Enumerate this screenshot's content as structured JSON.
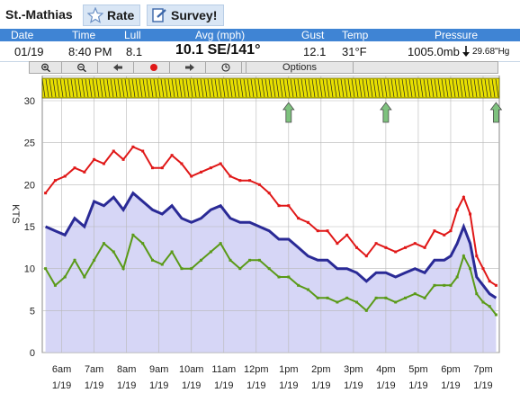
{
  "app": {
    "station": "St.-Mathias",
    "rate_label": "Rate",
    "survey_label": "Survey!"
  },
  "colors": {
    "header_bg": "#3f84d4",
    "gust": "#e01818",
    "avg": "#2a2a96",
    "lull": "#5a9a18",
    "fill": "#d6d6f6"
  },
  "headers": {
    "date": "Date",
    "time": "Time",
    "lull": "Lull",
    "avg": "Avg (mph)",
    "gust": "Gust",
    "temp": "Temp",
    "pressure": "Pressure"
  },
  "current": {
    "date": "01/19",
    "time": "8:40 PM",
    "lull": "8.1",
    "avg": "10.1 SE/141°",
    "gust": "12.1",
    "temp": "31°F",
    "pressure": "1005.0mb",
    "pressure_inhg": "29.68\"Hg"
  },
  "toolbar": {
    "options_label": "Options",
    "icons": [
      "zoom-in-icon",
      "zoom-out-icon",
      "arrow-left-icon",
      "record-icon",
      "arrow-right-icon",
      "clock-icon"
    ]
  },
  "chart_data": {
    "type": "line",
    "ylabel": "KTS",
    "ylim": [
      0,
      33
    ],
    "yticks": [
      0,
      5,
      10,
      15,
      20,
      25,
      30
    ],
    "xlim": [
      5.4,
      19.5
    ],
    "xticks": [
      {
        "x": 6,
        "label": "6am",
        "date": "1/19"
      },
      {
        "x": 7,
        "label": "7am",
        "date": "1/19"
      },
      {
        "x": 8,
        "label": "8am",
        "date": "1/19"
      },
      {
        "x": 9,
        "label": "9am",
        "date": "1/19"
      },
      {
        "x": 10,
        "label": "10am",
        "date": "1/19"
      },
      {
        "x": 11,
        "label": "11am",
        "date": "1/19"
      },
      {
        "x": 12,
        "label": "12pm",
        "date": "1/19"
      },
      {
        "x": 13,
        "label": "1pm",
        "date": "1/19"
      },
      {
        "x": 14,
        "label": "2pm",
        "date": "1/19"
      },
      {
        "x": 15,
        "label": "3pm",
        "date": "1/19"
      },
      {
        "x": 16,
        "label": "4pm",
        "date": "1/19"
      },
      {
        "x": 17,
        "label": "5pm",
        "date": "1/19"
      },
      {
        "x": 18,
        "label": "6pm",
        "date": "1/19"
      },
      {
        "x": 19,
        "label": "7pm",
        "date": "1/19"
      }
    ],
    "direction_arrows_x": [
      13,
      16,
      19.4
    ],
    "series": [
      {
        "key": "gust",
        "color": "#e01818",
        "x": [
          5.5,
          5.8,
          6.1,
          6.4,
          6.7,
          7.0,
          7.3,
          7.6,
          7.9,
          8.2,
          8.5,
          8.8,
          9.1,
          9.4,
          9.7,
          10.0,
          10.3,
          10.6,
          10.9,
          11.2,
          11.5,
          11.8,
          12.1,
          12.4,
          12.7,
          13.0,
          13.3,
          13.6,
          13.9,
          14.2,
          14.5,
          14.8,
          15.1,
          15.4,
          15.7,
          16.0,
          16.3,
          16.6,
          16.9,
          17.2,
          17.5,
          17.8,
          18.0,
          18.2,
          18.4,
          18.6,
          18.8,
          19.0,
          19.2,
          19.4
        ],
        "y": [
          19,
          20.5,
          21,
          22,
          21.5,
          23,
          22.5,
          24,
          23,
          24.5,
          24,
          22,
          22,
          23.5,
          22.5,
          21,
          21.5,
          22,
          22.5,
          21,
          20.5,
          20.5,
          20,
          19,
          17.5,
          17.5,
          16,
          15.5,
          14.5,
          14.5,
          13,
          14,
          12.5,
          11.5,
          13,
          12.5,
          12,
          12.5,
          13,
          12.5,
          14.5,
          14,
          14.5,
          17,
          18.5,
          16.5,
          11.5,
          10,
          8.5,
          8
        ]
      },
      {
        "key": "avg",
        "color": "#2a2a96",
        "x": [
          5.5,
          5.8,
          6.1,
          6.4,
          6.7,
          7.0,
          7.3,
          7.6,
          7.9,
          8.2,
          8.5,
          8.8,
          9.1,
          9.4,
          9.7,
          10.0,
          10.3,
          10.6,
          10.9,
          11.2,
          11.5,
          11.8,
          12.1,
          12.4,
          12.7,
          13.0,
          13.3,
          13.6,
          13.9,
          14.2,
          14.5,
          14.8,
          15.1,
          15.4,
          15.7,
          16.0,
          16.3,
          16.6,
          16.9,
          17.2,
          17.5,
          17.8,
          18.0,
          18.2,
          18.4,
          18.6,
          18.8,
          19.0,
          19.2,
          19.4
        ],
        "y": [
          15,
          14.5,
          14,
          16,
          15,
          18,
          17.5,
          18.5,
          17,
          19,
          18,
          17,
          16.5,
          17.5,
          16,
          15.5,
          16,
          17,
          17.5,
          16,
          15.5,
          15.5,
          15,
          14.5,
          13.5,
          13.5,
          12.5,
          11.5,
          11,
          11,
          10,
          10,
          9.5,
          8.5,
          9.5,
          9.5,
          9,
          9.5,
          10,
          9.5,
          11,
          11,
          11.5,
          13,
          15,
          13,
          9,
          8,
          7,
          6.5
        ]
      },
      {
        "key": "lull",
        "color": "#5a9a18",
        "x": [
          5.5,
          5.8,
          6.1,
          6.4,
          6.7,
          7.0,
          7.3,
          7.6,
          7.9,
          8.2,
          8.5,
          8.8,
          9.1,
          9.4,
          9.7,
          10.0,
          10.3,
          10.6,
          10.9,
          11.2,
          11.5,
          11.8,
          12.1,
          12.4,
          12.7,
          13.0,
          13.3,
          13.6,
          13.9,
          14.2,
          14.5,
          14.8,
          15.1,
          15.4,
          15.7,
          16.0,
          16.3,
          16.6,
          16.9,
          17.2,
          17.5,
          17.8,
          18.0,
          18.2,
          18.4,
          18.6,
          18.8,
          19.0,
          19.2,
          19.4
        ],
        "y": [
          10,
          8,
          9,
          11,
          9,
          11,
          13,
          12,
          10,
          14,
          13,
          11,
          10.5,
          12,
          10,
          10,
          11,
          12,
          13,
          11,
          10,
          11,
          11,
          10,
          9,
          9,
          8,
          7.5,
          6.5,
          6.5,
          6,
          6.5,
          6,
          5,
          6.5,
          6.5,
          6,
          6.5,
          7,
          6.5,
          8,
          8,
          8,
          9,
          11.5,
          10,
          7,
          6,
          5.5,
          4.5
        ]
      }
    ]
  }
}
